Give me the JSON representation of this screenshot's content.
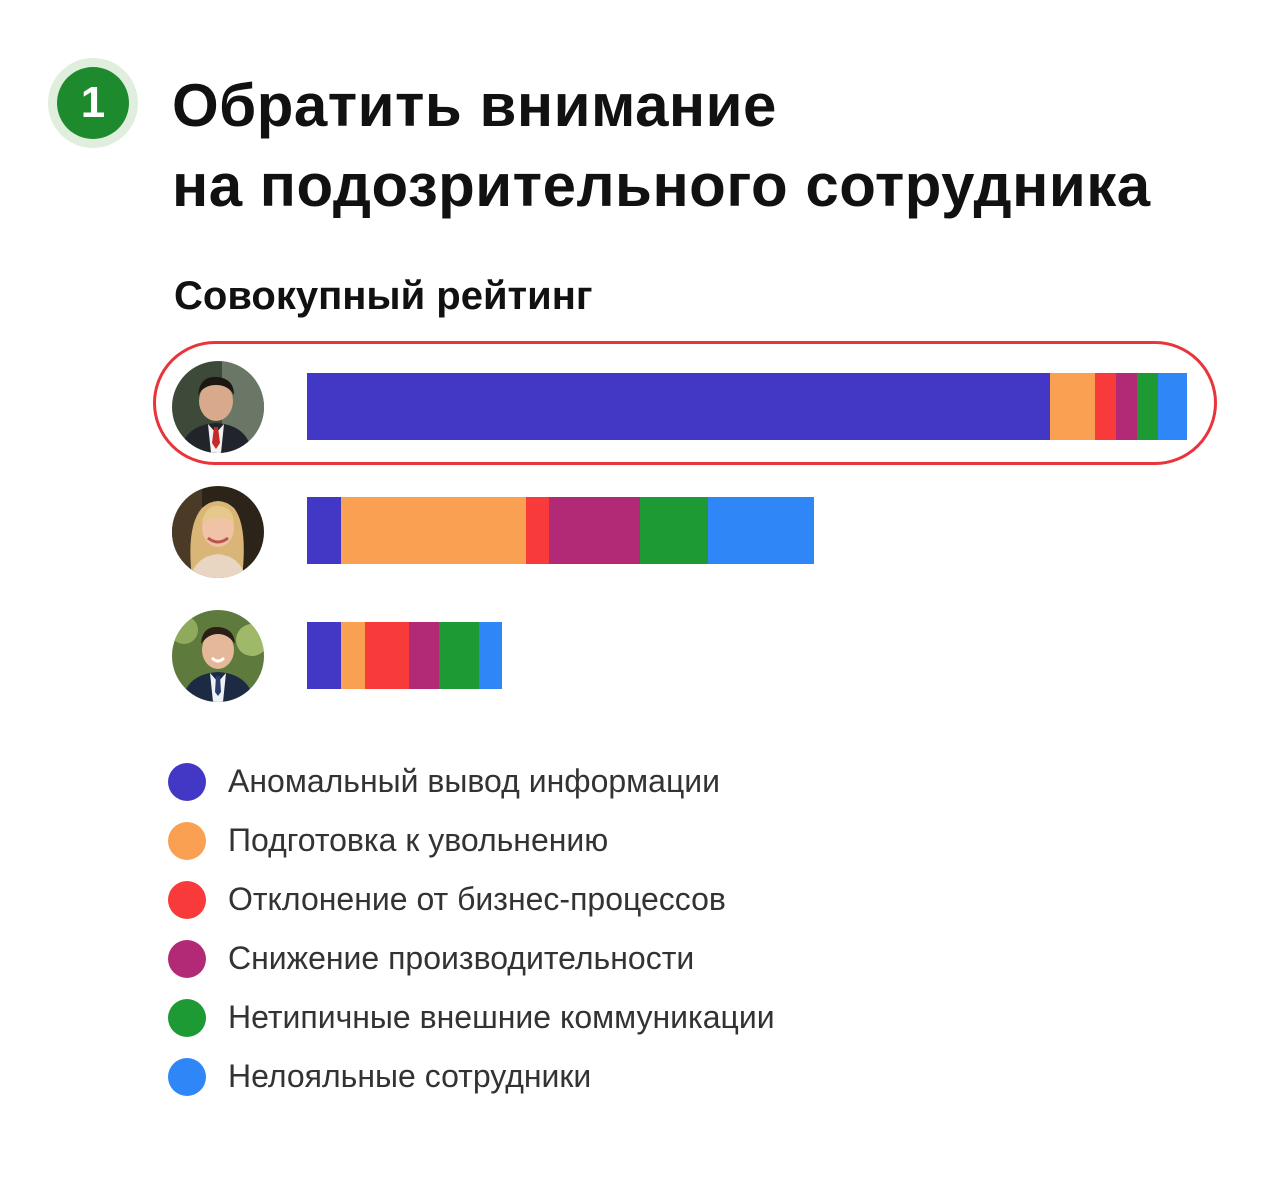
{
  "step": {
    "number": "1",
    "color": "#1e8a2e"
  },
  "title": {
    "line1": "Обратить внимание",
    "line2": "на подозрительного сотрудника"
  },
  "subtitle": "Совокупный рейтинг",
  "highlight_color": "#e8343a",
  "chart_data": {
    "type": "bar",
    "orientation": "horizontal",
    "stacked": true,
    "title": "Совокупный рейтинг",
    "categories": [
      "Сотрудник 1",
      "Сотрудник 2",
      "Сотрудник 3"
    ],
    "highlighted_category_index": 0,
    "xlim": [
      0,
      880
    ],
    "series": [
      {
        "name": "Аномальный вывод информации",
        "color": "#4338c6",
        "values": [
          743,
          34,
          34
        ]
      },
      {
        "name": "Подготовка к увольнению",
        "color": "#f9a053",
        "values": [
          45,
          185,
          24
        ]
      },
      {
        "name": "Отклонение от бизнес-процессов",
        "color": "#f83a3a",
        "values": [
          21,
          23,
          44
        ]
      },
      {
        "name": "Снижение производительности",
        "color": "#b22a75",
        "values": [
          21,
          91,
          30
        ]
      },
      {
        "name": "Нетипичные внешние коммуникации",
        "color": "#1e9a35",
        "values": [
          21,
          68,
          40
        ]
      },
      {
        "name": "Нелояльные сотрудники",
        "color": "#2f86f7",
        "values": [
          29,
          106,
          23
        ]
      }
    ],
    "xlabel": "",
    "ylabel": "",
    "grid": false,
    "legend_placement": "bottom-left"
  },
  "avatars": [
    {
      "icon": "person-photo-man-red-tie-icon"
    },
    {
      "icon": "person-photo-woman-blonde-icon"
    },
    {
      "icon": "person-photo-man-suit-icon"
    }
  ]
}
